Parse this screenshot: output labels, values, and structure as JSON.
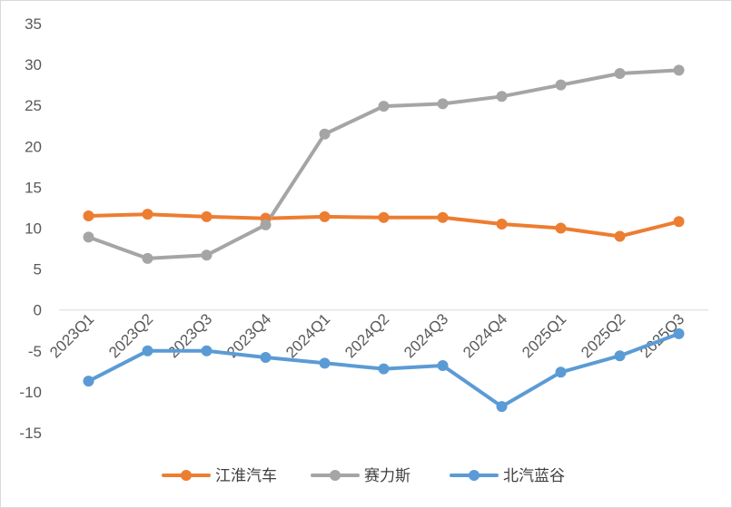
{
  "chart_data": {
    "type": "line",
    "categories": [
      "2023Q1",
      "2023Q2",
      "2023Q3",
      "2023Q4",
      "2024Q1",
      "2024Q2",
      "2024Q3",
      "2024Q4",
      "2025Q1",
      "2025Q2",
      "2025Q3"
    ],
    "series": [
      {
        "name": "江淮汽车",
        "color": "#ED7D31",
        "values": [
          11.5,
          11.7,
          11.4,
          11.2,
          11.4,
          11.3,
          11.3,
          10.5,
          10.0,
          9.0,
          10.8
        ]
      },
      {
        "name": "赛力斯",
        "color": "#A5A5A5",
        "values": [
          8.9,
          6.3,
          6.7,
          10.4,
          21.5,
          24.9,
          25.2,
          26.1,
          27.5,
          28.9,
          29.3
        ]
      },
      {
        "name": "北汽蓝谷",
        "color": "#5B9BD5",
        "values": [
          -8.7,
          -5.0,
          -5.0,
          -5.8,
          -6.5,
          -7.2,
          -6.8,
          -11.8,
          -7.6,
          -5.6,
          -2.9
        ]
      }
    ],
    "y_ticks": [
      35,
      30,
      25,
      20,
      15,
      10,
      5,
      0,
      -5,
      -10,
      -15
    ],
    "ylim": [
      -15,
      35
    ],
    "grid": false,
    "legend_position": "bottom"
  }
}
